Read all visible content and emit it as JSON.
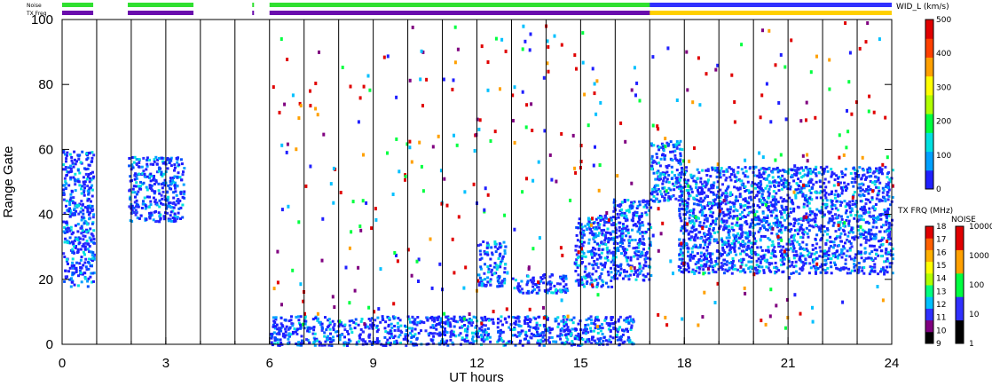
{
  "status_bars": {
    "noise_label": "Noise",
    "txfreq_label": "TX Freq"
  },
  "chart_data": {
    "type": "scatter",
    "xlabel": "UT hours",
    "ylabel": "Range Gate",
    "xlim": [
      0,
      24
    ],
    "ylim": [
      0,
      100
    ],
    "xticks": [
      "0",
      "3",
      "6",
      "9",
      "12",
      "15",
      "18",
      "21",
      "24"
    ],
    "yticks": [
      "0",
      "20",
      "40",
      "60",
      "80",
      "100"
    ],
    "vertical_grid": true,
    "scatter_blocks": [
      {
        "x": [
          0.0,
          0.9
        ],
        "y": [
          18,
          60
        ]
      },
      {
        "x": [
          1.9,
          3.5
        ],
        "y": [
          38,
          58
        ]
      },
      {
        "x": [
          12.0,
          12.8
        ],
        "y": [
          18,
          32
        ]
      },
      {
        "x": [
          13.0,
          14.6
        ],
        "y": [
          16,
          22
        ]
      },
      {
        "x": [
          14.8,
          16.0
        ],
        "y": [
          18,
          40
        ]
      },
      {
        "x": [
          15.9,
          17.0
        ],
        "y": [
          20,
          45
        ]
      },
      {
        "x": [
          17.0,
          17.9
        ],
        "y": [
          44,
          63
        ]
      },
      {
        "x": [
          17.8,
          24.0
        ],
        "y": [
          22,
          55
        ]
      },
      {
        "x": [
          6.0,
          16.5
        ],
        "y": [
          0,
          9
        ]
      }
    ],
    "colorbars": [
      {
        "title": "WID_L (km/s)",
        "ticks": [
          "0",
          "100",
          "200",
          "300",
          "400",
          "500"
        ],
        "colors": [
          "#2020ff",
          "#00a0ff",
          "#00e0e0",
          "#00ff40",
          "#b0ff00",
          "#ffff00",
          "#ffa000",
          "#ff4000",
          "#e00000"
        ]
      },
      {
        "title": "TX FRQ (MHz)",
        "ticks": [
          "9",
          "10",
          "11",
          "12",
          "13",
          "14",
          "15",
          "16",
          "17",
          "18"
        ],
        "colors": [
          "#000000",
          "#800080",
          "#3030ff",
          "#00c0ff",
          "#00ff80",
          "#b0ff00",
          "#ffff00",
          "#ffb000",
          "#ff6000",
          "#e00000"
        ]
      },
      {
        "title": "NOISE",
        "ticks": [
          "1",
          "10",
          "100",
          "1000",
          "10000"
        ],
        "colors": [
          "#000000",
          "#3030ff",
          "#00ff40",
          "#ffa000",
          "#e00000"
        ]
      }
    ]
  }
}
